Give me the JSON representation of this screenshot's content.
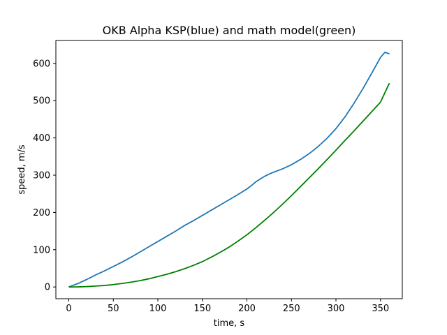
{
  "chart_data": {
    "type": "line",
    "title": "OKB Alpha KSP(blue) and math model(green)",
    "xlabel": "time, s",
    "ylabel": "speed, m/s",
    "xlim": [
      -14.5,
      374.5
    ],
    "ylim": [
      -31.5,
      661.5
    ],
    "xticks": [
      0,
      50,
      100,
      150,
      200,
      250,
      300,
      350
    ],
    "yticks": [
      0,
      100,
      200,
      300,
      400,
      500,
      600
    ],
    "grid": false,
    "series": [
      {
        "color": "#1f77b4",
        "x": [
          0,
          10,
          20,
          30,
          40,
          50,
          60,
          70,
          80,
          90,
          100,
          110,
          120,
          130,
          140,
          150,
          160,
          170,
          180,
          190,
          200,
          205,
          210,
          215,
          220,
          225,
          230,
          240,
          250,
          260,
          270,
          280,
          290,
          300,
          310,
          320,
          330,
          340,
          350,
          355,
          357,
          360
        ],
        "values": [
          0,
          9,
          20,
          32,
          43,
          55,
          67,
          80,
          94,
          108,
          122,
          136,
          150,
          165,
          178,
          192,
          206,
          220,
          234,
          248,
          263,
          272,
          282,
          290,
          297,
          303,
          308,
          317,
          328,
          342,
          358,
          377,
          399,
          425,
          456,
          492,
          531,
          573,
          616,
          630,
          628,
          626
        ]
      },
      {
        "color": "#008000",
        "x": [
          0,
          10,
          20,
          30,
          40,
          50,
          60,
          70,
          80,
          90,
          100,
          110,
          120,
          130,
          140,
          150,
          160,
          170,
          180,
          190,
          200,
          210,
          220,
          230,
          240,
          250,
          260,
          270,
          280,
          290,
          300,
          310,
          320,
          330,
          340,
          350,
          360
        ],
        "values": [
          0,
          0.2,
          1,
          2.4,
          4,
          6.5,
          9.5,
          13,
          17,
          22,
          28,
          34,
          41,
          49,
          58,
          68,
          80,
          93,
          107,
          123,
          140,
          159,
          179,
          200,
          222,
          245,
          269,
          293,
          317,
          342,
          367,
          393,
          418,
          444,
          470,
          496,
          547
        ]
      }
    ]
  }
}
